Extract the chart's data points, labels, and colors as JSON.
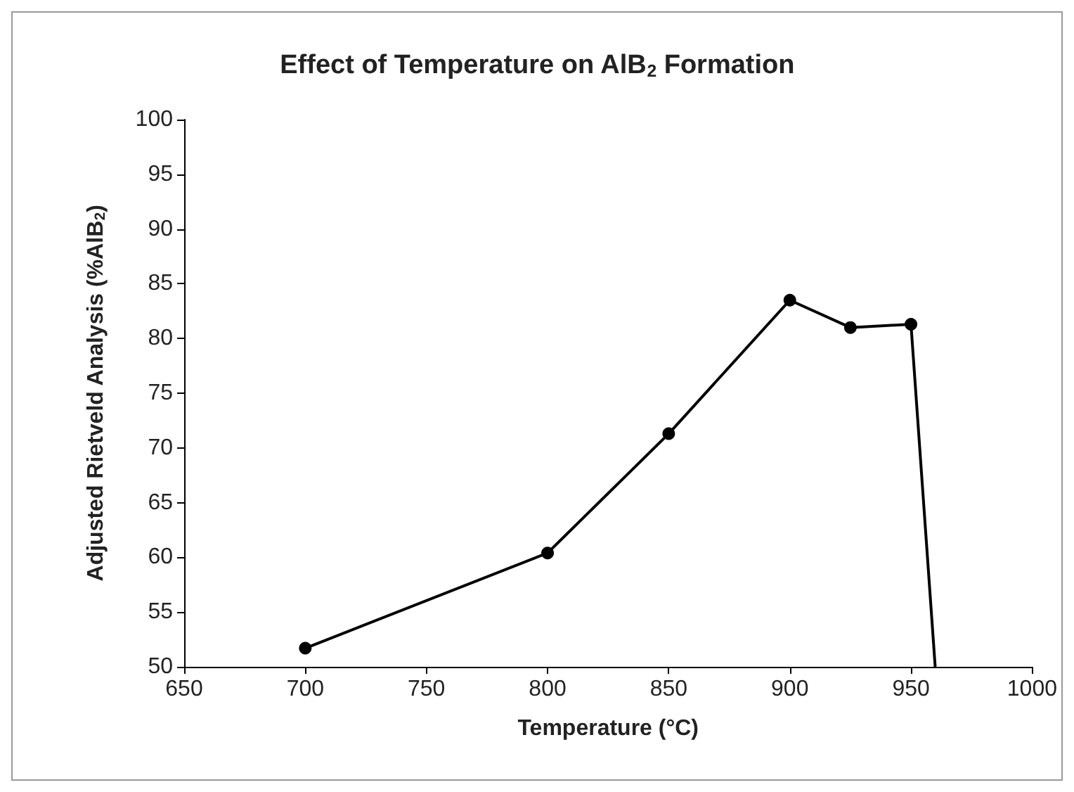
{
  "chart_data": {
    "type": "line",
    "title": "Effect of Temperature on AlB$_{2}$ Formation",
    "xlabel": "Temperature (°C)",
    "ylabel": "Adjusted Rietveld Analysis (%AlB$_{2}$)",
    "series": [
      {
        "color": "#000000",
        "x": [
          700,
          800,
          850,
          900,
          925,
          950,
          960
        ],
        "values": [
          51.7,
          60.4,
          71.3,
          83.5,
          81.0,
          81.3,
          50
        ]
      }
    ],
    "xlim": [
      650,
      1000
    ],
    "xticks": [
      650,
      700,
      750,
      800,
      850,
      900,
      950,
      1000
    ],
    "ylim": [
      50,
      100
    ],
    "yticks": [
      50,
      55,
      60,
      65,
      70,
      75,
      80,
      85,
      90,
      95,
      100
    ],
    "grid": false,
    "marker": "circle",
    "line_style": "solid"
  }
}
